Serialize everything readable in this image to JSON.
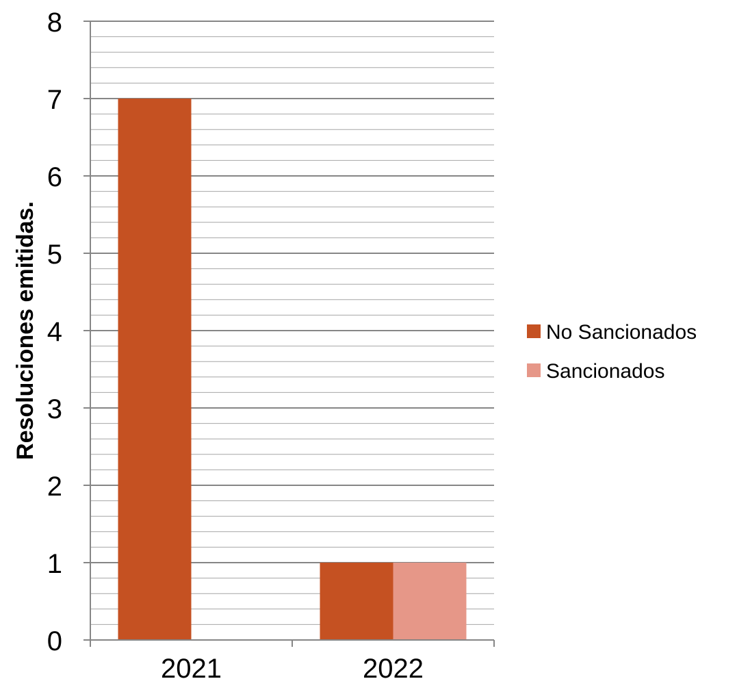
{
  "chart_data": {
    "type": "bar",
    "title": "",
    "xlabel": "",
    "ylabel": "Resoluciones emitidas.",
    "categories": [
      "2021",
      "2022"
    ],
    "series": [
      {
        "name": "No Sancionados",
        "values": [
          7,
          1
        ],
        "color": "#C55122"
      },
      {
        "name": "Sancionados",
        "values": [
          0,
          1
        ],
        "color": "#E69788"
      }
    ],
    "ylim": [
      0,
      8
    ],
    "yticks": [
      0,
      1,
      2,
      3,
      4,
      5,
      6,
      7,
      8
    ],
    "minor_gridlines_per_major": 5,
    "grid": true,
    "legend_position": "right"
  }
}
